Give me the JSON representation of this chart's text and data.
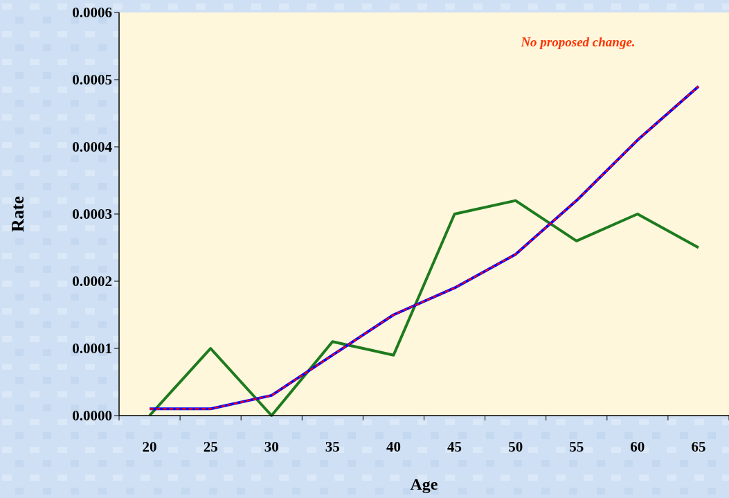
{
  "chart_data": {
    "type": "line",
    "xlabel": "Age",
    "ylabel": "Rate",
    "categories": [
      "20",
      "25",
      "30",
      "35",
      "40",
      "45",
      "50",
      "55",
      "60",
      "65"
    ],
    "series": [
      {
        "color": "#1e7b1e",
        "line_style": "solid",
        "values": [
          0,
          0.0001,
          0,
          0.00011,
          9e-05,
          0.0003,
          0.00032,
          0.00026,
          0.0003,
          0.00025
        ]
      },
      {
        "color": "#0000ff",
        "line_style": "solid",
        "values": [
          1e-05,
          1e-05,
          3e-05,
          9e-05,
          0.00015,
          0.00019,
          0.00024,
          0.00032,
          0.00041,
          0.00049
        ]
      },
      {
        "color": "#ff0000",
        "line_style": "dashed",
        "values": [
          1e-05,
          1e-05,
          3e-05,
          9e-05,
          0.00015,
          0.00019,
          0.00024,
          0.00032,
          0.00041,
          0.00049
        ]
      }
    ],
    "ylim": [
      0,
      0.0006
    ],
    "yticks": [
      {
        "value": 0,
        "label": "0.0000"
      },
      {
        "value": 0.0001,
        "label": "0.0001"
      },
      {
        "value": 0.0002,
        "label": "0.0002"
      },
      {
        "value": 0.0003,
        "label": "0.0003"
      },
      {
        "value": 0.0004,
        "label": "0.0004"
      },
      {
        "value": 0.0005,
        "label": "0.0005"
      },
      {
        "value": 0.0006,
        "label": "0.0006"
      }
    ],
    "annotations": [
      "No proposed change."
    ],
    "grid": false,
    "marker": "none"
  }
}
